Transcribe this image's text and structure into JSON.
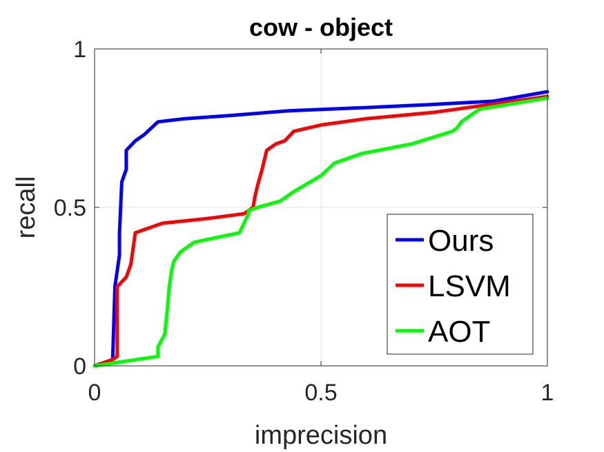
{
  "chart_data": {
    "type": "line",
    "title": "cow - object",
    "xlabel": "imprecision",
    "ylabel": "recall",
    "xlim": [
      0,
      1
    ],
    "ylim": [
      0,
      1
    ],
    "xticks": [
      "0",
      "0.5",
      "1"
    ],
    "yticks": [
      "0",
      "0.5",
      "1"
    ],
    "grid": true,
    "legend": "bottom-right",
    "series": [
      {
        "name": "Ours",
        "color": "#0000ff",
        "x": [
          0,
          0.04,
          0.045,
          0.05,
          0.055,
          0.055,
          0.06,
          0.065,
          0.07,
          0.07,
          0.09,
          0.11,
          0.14,
          0.2,
          0.3,
          0.43,
          0.6,
          0.75,
          0.88,
          1.0
        ],
        "y": [
          0,
          0.02,
          0.25,
          0.3,
          0.35,
          0.42,
          0.58,
          0.6,
          0.62,
          0.68,
          0.71,
          0.73,
          0.77,
          0.78,
          0.79,
          0.805,
          0.815,
          0.825,
          0.835,
          0.865
        ]
      },
      {
        "name": "LSVM",
        "color": "#ff0000",
        "x": [
          0,
          0.04,
          0.05,
          0.05,
          0.07,
          0.08,
          0.09,
          0.15,
          0.25,
          0.33,
          0.35,
          0.355,
          0.36,
          0.37,
          0.38,
          0.4,
          0.42,
          0.44,
          0.5,
          0.6,
          0.75,
          0.9,
          1.0
        ],
        "y": [
          0,
          0.02,
          0.03,
          0.25,
          0.28,
          0.32,
          0.42,
          0.45,
          0.465,
          0.48,
          0.5,
          0.54,
          0.57,
          0.62,
          0.68,
          0.7,
          0.71,
          0.74,
          0.76,
          0.78,
          0.8,
          0.83,
          0.85
        ]
      },
      {
        "name": "AOT",
        "color": "#00ff00",
        "x": [
          0,
          0.14,
          0.14,
          0.155,
          0.16,
          0.165,
          0.17,
          0.175,
          0.19,
          0.22,
          0.32,
          0.34,
          0.34,
          0.36,
          0.41,
          0.44,
          0.5,
          0.53,
          0.59,
          0.7,
          0.79,
          0.8,
          0.81,
          0.85,
          1.0
        ],
        "y": [
          0,
          0.03,
          0.06,
          0.1,
          0.17,
          0.25,
          0.3,
          0.33,
          0.36,
          0.39,
          0.42,
          0.48,
          0.49,
          0.5,
          0.52,
          0.55,
          0.6,
          0.64,
          0.67,
          0.7,
          0.74,
          0.75,
          0.77,
          0.81,
          0.845
        ]
      }
    ]
  }
}
